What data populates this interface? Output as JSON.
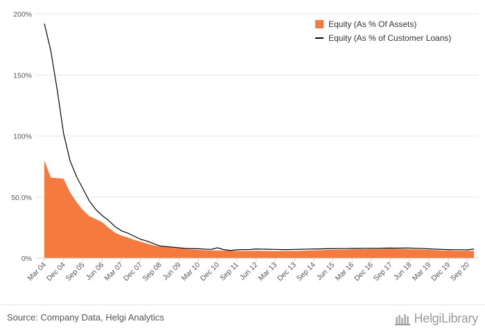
{
  "chart_data": {
    "type": "area",
    "x": [
      "Mar 04",
      "Jun 04",
      "Sep 04",
      "Dec 04",
      "Mar 05",
      "Jun 05",
      "Sep 05",
      "Dec 05",
      "Mar 06",
      "Jun 06",
      "Sep 06",
      "Dec 06",
      "Mar 07",
      "Jun 07",
      "Sep 07",
      "Dec 07",
      "Mar 08",
      "Jun 08",
      "Sep 08",
      "Dec 08",
      "Mar 09",
      "Jun 09",
      "Sep 09",
      "Dec 09",
      "Mar 10",
      "Jun 10",
      "Sep 10",
      "Dec 10",
      "Mar 11",
      "Jun 11",
      "Sep 11",
      "Dec 11",
      "Mar 12",
      "Jun 12",
      "Sep 12",
      "Dec 12",
      "Mar 13",
      "Jun 13",
      "Sep 13",
      "Dec 13",
      "Mar 14",
      "Jun 14",
      "Sep 14",
      "Dec 14",
      "Mar 15",
      "Jun 15",
      "Sep 15",
      "Dec 15",
      "Mar 16",
      "Jun 16",
      "Sep 16",
      "Dec 16",
      "Mar 17",
      "Jun 17",
      "Sep 17",
      "Dec 17",
      "Mar 18",
      "Jun 18",
      "Sep 18",
      "Dec 18",
      "Mar 19",
      "Jun 19",
      "Sep 19",
      "Dec 19",
      "Mar 20",
      "Jun 20",
      "Sep 20",
      "Dec 20"
    ],
    "x_tick_labels": [
      "Mar 04",
      "Dec 04",
      "Sep 05",
      "Jun 06",
      "Mar 07",
      "Dec 07",
      "Sep 08",
      "Jun 09",
      "Mar 10",
      "Dec 10",
      "Sep 11",
      "Jun 12",
      "Mar 13",
      "Dec 13",
      "Sep 14",
      "Jun 15",
      "Mar 16",
      "Dec 16",
      "Sep 17",
      "Jun 18",
      "Mar 19",
      "Dec 19",
      "Sep 20"
    ],
    "y_tick_labels": [
      "0%",
      "50.0%",
      "100%",
      "150%",
      "200%"
    ],
    "y_ticks": [
      0,
      50,
      100,
      150,
      200
    ],
    "ylim": [
      0,
      200
    ],
    "grid": true,
    "legend_position": "top-right",
    "series": [
      {
        "name": "Equity (As % Of Assets)",
        "type": "area",
        "color": "#f47a40",
        "values": [
          80,
          66,
          65.5,
          65,
          54,
          46,
          39.5,
          34.5,
          32,
          29.5,
          25,
          21,
          18.5,
          17,
          15,
          13.5,
          12,
          10.5,
          9.5,
          9,
          8.5,
          8,
          7.5,
          7,
          6.8,
          6.6,
          6.4,
          6.3,
          6.2,
          6.0,
          5.8,
          5.9,
          6.0,
          6.1,
          6.0,
          5.9,
          5.8,
          5.8,
          5.9,
          6.0,
          6.1,
          6.2,
          6.4,
          6.5,
          6.7,
          6.8,
          7.0,
          7.1,
          7.2,
          7.3,
          7.4,
          7.5,
          7.5,
          7.6,
          7.7,
          7.6,
          7.5,
          7.3,
          7.2,
          7.0,
          6.8,
          6.6,
          6.4,
          6.3,
          6.1,
          6.0,
          6.0,
          6.1
        ]
      },
      {
        "name": "Equity (As % of Customer Loans)",
        "type": "line",
        "color": "#000000",
        "values": [
          192,
          170,
          138,
          102,
          80,
          67,
          57,
          47,
          40,
          35,
          31,
          26,
          22.5,
          20.5,
          18,
          15.5,
          14,
          12,
          10,
          9.5,
          9,
          8.5,
          8,
          7.8,
          7.7,
          7.4,
          7.2,
          8.5,
          7.0,
          6.3,
          6.8,
          7.0,
          7.1,
          7.5,
          7.4,
          7.3,
          7.2,
          7.0,
          7.0,
          7.2,
          7.3,
          7.4,
          7.5,
          7.6,
          7.7,
          7.8,
          7.9,
          7.9,
          8.0,
          8.0,
          8.1,
          8.1,
          8.1,
          8.2,
          8.3,
          8.2,
          8.3,
          8.3,
          8.1,
          7.9,
          7.6,
          7.4,
          7.2,
          7.0,
          6.9,
          6.9,
          6.8,
          7.5
        ]
      }
    ]
  },
  "footer": {
    "source_text": "Source: Company Data, Helgi Analytics",
    "brand_name": "HelgiLibrary"
  }
}
